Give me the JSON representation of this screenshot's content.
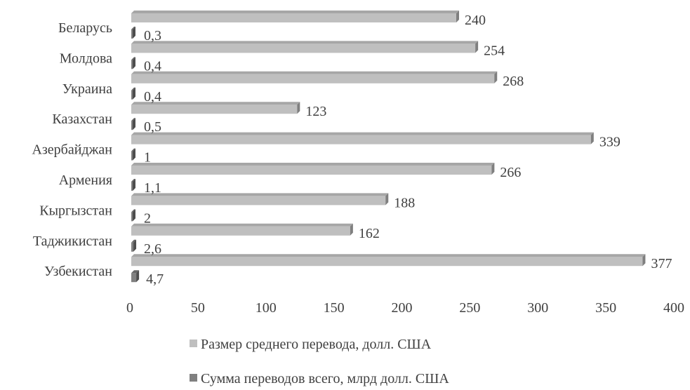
{
  "chart_data": {
    "type": "bar",
    "orientation": "horizontal",
    "style": "3d-clustered",
    "categories": [
      "Беларусь",
      "Молдова",
      "Украина",
      "Казахстан",
      "Азербайджан",
      "Армения",
      "Кыргызстан",
      "Таджикистан",
      "Узбекистан"
    ],
    "series": [
      {
        "name": "Размер среднего перевода, долл. США",
        "values": [
          240,
          254,
          268,
          123,
          339,
          266,
          188,
          162,
          377
        ],
        "labels": [
          "240",
          "254",
          "268",
          "123",
          "339",
          "266",
          "188",
          "162",
          "377"
        ],
        "color": "#bfbfbf",
        "side_color": "#7f7f7f",
        "top_color": "#a6a6a6"
      },
      {
        "name": "Сумма переводов всего, млрд долл. США",
        "values": [
          0.3,
          0.4,
          0.4,
          0.5,
          1,
          1.1,
          2,
          2.6,
          4.7
        ],
        "labels": [
          "0,3",
          "0,4",
          "0,4",
          "0,5",
          "1",
          "1,1",
          "2",
          "2,6",
          "4,7"
        ],
        "color": "#808080",
        "side_color": "#4d4d4d",
        "top_color": "#666666"
      }
    ],
    "xaxis": {
      "ticks": [
        0,
        50,
        100,
        150,
        200,
        250,
        300,
        350,
        400
      ],
      "tick_labels": [
        "0",
        "50",
        "100",
        "150",
        "200",
        "250",
        "300",
        "350",
        "400"
      ],
      "range": [
        0,
        400
      ]
    },
    "title": "",
    "xlabel": "",
    "ylabel": "",
    "grid": false,
    "legend_position": "bottom"
  }
}
